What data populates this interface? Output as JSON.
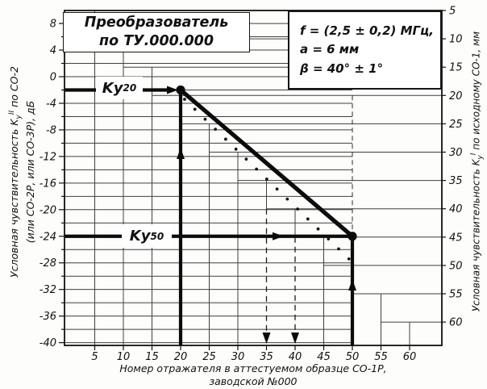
{
  "figure": {
    "title_box": {
      "line1": "Преобразователь",
      "line2": "по ТУ.000.000"
    },
    "params_box": {
      "line1": "f = (2,5 ± 0,2) МГц,",
      "line2": "a = 6 мм",
      "line3": "β = 40° ± 1°"
    },
    "ky20_label": {
      "base": "Kу",
      "sub": "20"
    },
    "ky50_label": {
      "base": "Kу",
      "sub": "50"
    }
  },
  "chart_data": {
    "type": "line",
    "x_axis": {
      "title_line1": "Номер отражателя в аттестуемом образце СО-1Р,",
      "title_line2": "заводской №000",
      "ticks": [
        5,
        10,
        15,
        20,
        25,
        30,
        35,
        40,
        45,
        50,
        55,
        60
      ]
    },
    "y_left_axis": {
      "title_prefix": "Условная чувствительность ",
      "k_base": "K",
      "k_sub": "у",
      "k_sup": "II",
      "title_suffix": " по СО-2",
      "title_line2": "(или СО-2Р, или СО-3Р), дБ",
      "unit": "дБ",
      "major_ticks": [
        8,
        4,
        0,
        -4,
        -8,
        -12,
        -16,
        -20,
        -24,
        -28,
        -32,
        -36,
        -40
      ],
      "minor_step_db": 2,
      "top_db": 8,
      "bottom_db": -40
    },
    "y_right_axis": {
      "title_prefix": "Условная чувствительность ",
      "k_base": "K",
      "k_sub": "у",
      "k_sup": "I",
      "title_suffix": " по исходному СО-1, мм",
      "unit": "мм",
      "ticks": [
        5,
        10,
        15,
        20,
        25,
        30,
        35,
        40,
        45,
        50,
        55,
        60
      ]
    },
    "series": [
      {
        "name": "sensitivity-line",
        "style": "bold-solid",
        "points": [
          [
            20,
            -2
          ],
          [
            50,
            -24
          ]
        ]
      },
      {
        "name": "tolerance-line",
        "style": "dotted",
        "points": [
          [
            20.7,
            -3.4
          ],
          [
            49.4,
            -27.4
          ]
        ]
      }
    ],
    "construction": {
      "ky20": {
        "reflector_number": 20,
        "level_db": -2
      },
      "ky50": {
        "reflector_number": 50,
        "level_db": -24
      },
      "dashed_drop_lines_x": [
        35,
        40
      ],
      "dashed_vertical_x50_from_mm": 20,
      "staircase_step_mm": 5
    }
  }
}
